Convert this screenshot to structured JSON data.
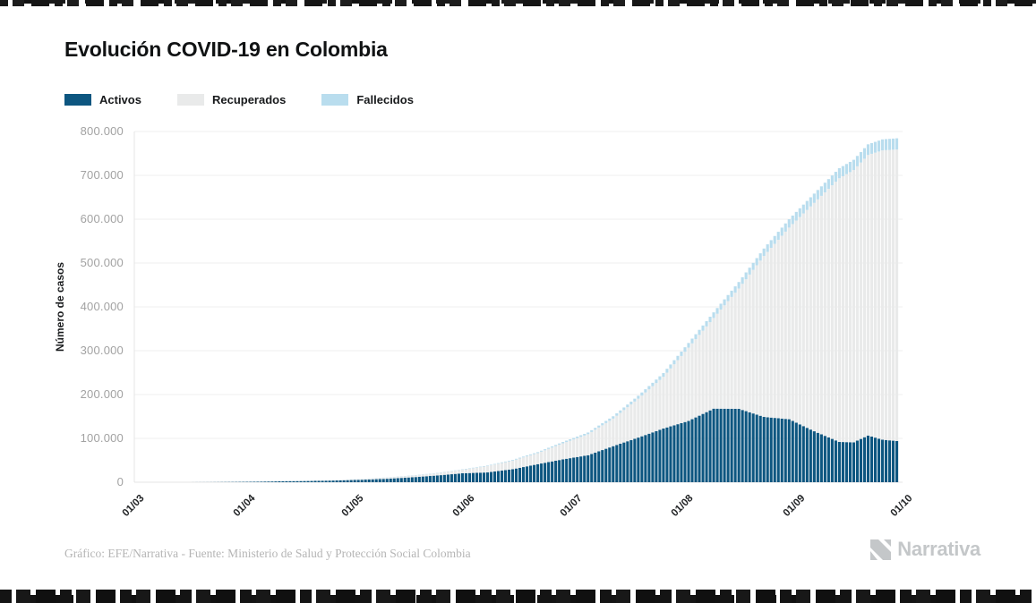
{
  "header": {
    "title": "Evolución COVID-19 en Colombia"
  },
  "legend": [
    {
      "label": "Activos",
      "color": "#0d5680"
    },
    {
      "label": "Recuperados",
      "color": "#e9eaea"
    },
    {
      "label": "Fallecidos",
      "color": "#b9ddee"
    }
  ],
  "footer": {
    "caption": "Gráfico: EFE/Narrativa - Fuente: Ministerio de Salud y Protección Social Colombia",
    "brand": "Narrativa"
  },
  "chart_data": {
    "type": "bar",
    "stacked": true,
    "title": "Evolución COVID-19 en Colombia",
    "xlabel": "",
    "ylabel": "Número de casos",
    "ylim": [
      0,
      800000
    ],
    "grid": "horizontal",
    "legend_position": "top",
    "x_span_days": 214,
    "bar_interval_days": 1,
    "colors": {
      "activos": "#0d5680",
      "recuperados": "#e9eaea",
      "fallecidos": "#b9ddee"
    },
    "yticks": [
      {
        "value": 0,
        "label": "0"
      },
      {
        "value": 100000,
        "label": "100.000"
      },
      {
        "value": 200000,
        "label": "200.000"
      },
      {
        "value": 300000,
        "label": "300.000"
      },
      {
        "value": 400000,
        "label": "400.000"
      },
      {
        "value": 500000,
        "label": "500.000"
      },
      {
        "value": 600000,
        "label": "600.000"
      },
      {
        "value": 700000,
        "label": "700.000"
      },
      {
        "value": 800000,
        "label": "800.000"
      }
    ],
    "xticks": [
      {
        "day": 0,
        "label": "01/03"
      },
      {
        "day": 31,
        "label": "01/04"
      },
      {
        "day": 61,
        "label": "01/05"
      },
      {
        "day": 92,
        "label": "01/06"
      },
      {
        "day": 122,
        "label": "01/07"
      },
      {
        "day": 153,
        "label": "01/08"
      },
      {
        "day": 184,
        "label": "01/09"
      },
      {
        "day": 214,
        "label": "01/10"
      }
    ],
    "series_order": [
      "Activos",
      "Recuperados",
      "Fallecidos"
    ],
    "points": [
      {
        "day": 0,
        "date": "01/03",
        "activos": 0,
        "recuperados": 0,
        "fallecidos": 0
      },
      {
        "day": 7,
        "date": "08/03",
        "activos": 1,
        "recuperados": 0,
        "fallecidos": 0
      },
      {
        "day": 14,
        "date": "15/03",
        "activos": 33,
        "recuperados": 1,
        "fallecidos": 0
      },
      {
        "day": 21,
        "date": "22/03",
        "activos": 226,
        "recuperados": 3,
        "fallecidos": 2
      },
      {
        "day": 28,
        "date": "29/03",
        "activos": 682,
        "recuperados": 10,
        "fallecidos": 10
      },
      {
        "day": 35,
        "date": "05/04",
        "activos": 1289,
        "recuperados": 85,
        "fallecidos": 32
      },
      {
        "day": 42,
        "date": "12/04",
        "activos": 2397,
        "recuperados": 270,
        "fallecidos": 109
      },
      {
        "day": 49,
        "date": "19/04",
        "activos": 2902,
        "recuperados": 711,
        "fallecidos": 179
      },
      {
        "day": 56,
        "date": "26/04",
        "activos": 4002,
        "recuperados": 1133,
        "fallecidos": 244
      },
      {
        "day": 63,
        "date": "03/05",
        "activos": 5606,
        "recuperados": 1722,
        "fallecidos": 340
      },
      {
        "day": 70,
        "date": "10/05",
        "activos": 7895,
        "recuperados": 2705,
        "fallecidos": 463
      },
      {
        "day": 77,
        "date": "17/05",
        "activos": 11249,
        "recuperados": 3751,
        "fallecidos": 574
      },
      {
        "day": 84,
        "date": "24/05",
        "activos": 15432,
        "recuperados": 5016,
        "fallecidos": 727
      },
      {
        "day": 91,
        "date": "31/05",
        "activos": 20382,
        "recuperados": 8063,
        "fallecidos": 939
      },
      {
        "day": 98,
        "date": "07/06",
        "activos": 22368,
        "recuperados": 14454,
        "fallecidos": 1205
      },
      {
        "day": 105,
        "date": "14/06",
        "activos": 29645,
        "recuperados": 19627,
        "fallecidos": 1667
      },
      {
        "day": 112,
        "date": "21/06",
        "activos": 41188,
        "recuperados": 25227,
        "fallecidos": 2237
      },
      {
        "day": 119,
        "date": "28/06",
        "activos": 52163,
        "recuperados": 36500,
        "fallecidos": 3106
      },
      {
        "day": 126,
        "date": "05/07",
        "activos": 61566,
        "recuperados": 47881,
        "fallecidos": 3942
      },
      {
        "day": 133,
        "date": "12/07",
        "activos": 82213,
        "recuperados": 62925,
        "fallecidos": 5307
      },
      {
        "day": 140,
        "date": "19/07",
        "activos": 101811,
        "recuperados": 88731,
        "fallecidos": 6736
      },
      {
        "day": 147,
        "date": "26/07",
        "activos": 122549,
        "recuperados": 117902,
        "fallecidos": 8525
      },
      {
        "day": 154,
        "date": "02/08",
        "activos": 139762,
        "recuperados": 167239,
        "fallecidos": 10650
      },
      {
        "day": 161,
        "date": "09/08",
        "activos": 167885,
        "recuperados": 206770,
        "fallecidos": 12826
      },
      {
        "day": 168,
        "date": "16/08",
        "activos": 167459,
        "recuperados": 274420,
        "fallecidos": 14810
      },
      {
        "day": 175,
        "date": "23/08",
        "activos": 148931,
        "recuperados": 367204,
        "fallecidos": 16968
      },
      {
        "day": 182,
        "date": "30/08",
        "activos": 143727,
        "recuperados": 437094,
        "fallecidos": 19063
      },
      {
        "day": 189,
        "date": "06/09",
        "activos": 116198,
        "recuperados": 521005,
        "fallecidos": 21156
      },
      {
        "day": 196,
        "date": "13/09",
        "activos": 91896,
        "recuperados": 601499,
        "fallecidos": 22924
      },
      {
        "day": 200,
        "date": "17/09",
        "activos": 91000,
        "recuperados": 621000,
        "fallecidos": 23500
      },
      {
        "day": 204,
        "date": "21/09",
        "activos": 106500,
        "recuperados": 640000,
        "fallecidos": 24300
      },
      {
        "day": 208,
        "date": "25/09",
        "activos": 97000,
        "recuperados": 660000,
        "fallecidos": 25000
      },
      {
        "day": 212,
        "date": "29/09",
        "activos": 94000,
        "recuperados": 665000,
        "fallecidos": 25500
      }
    ]
  }
}
